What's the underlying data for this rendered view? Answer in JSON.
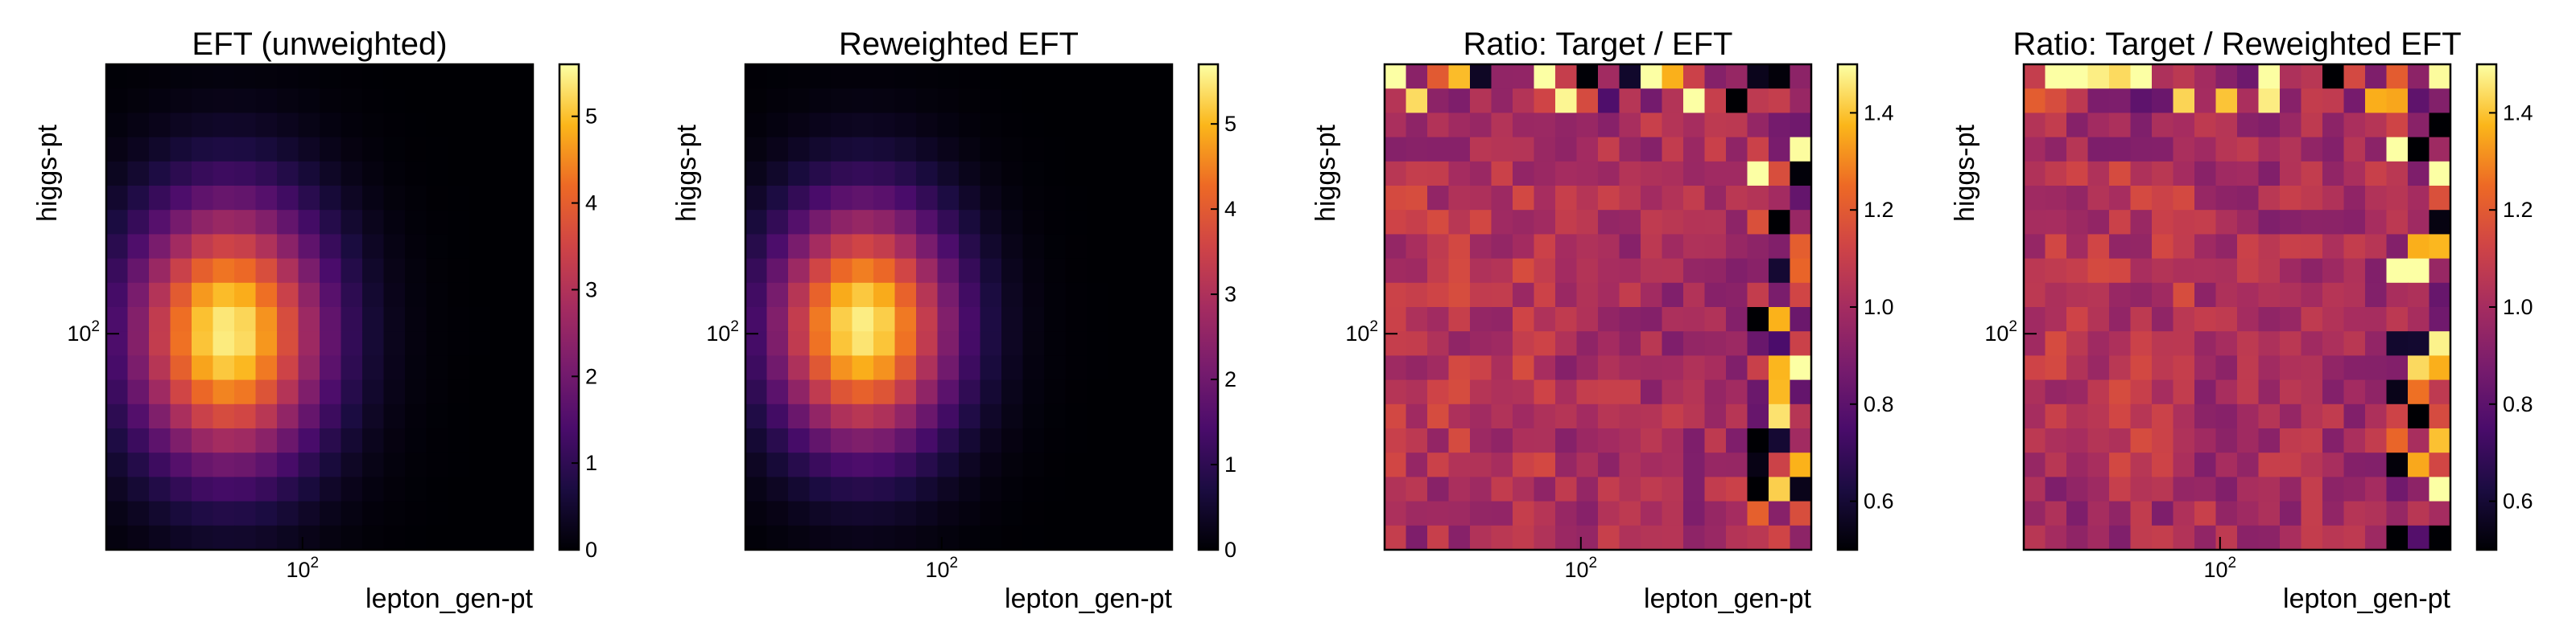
{
  "chart_data": [
    {
      "type": "heatmap",
      "title": "EFT (unweighted)",
      "xlabel": "lepton_gen-pt",
      "ylabel": "higgs-pt",
      "x_scale": "log",
      "y_scale": "log",
      "x_tick_labels": [
        "10^2"
      ],
      "y_tick_labels": [
        "10^2"
      ],
      "colormap": "inferno",
      "colorbar_range": [
        0,
        5.6
      ],
      "colorbar_ticks": [
        "0",
        "1",
        "2",
        "3",
        "4",
        "5"
      ],
      "grid_bins": [
        20,
        20
      ],
      "z_description": "smooth distribution peaking near 5.5 at lower-left-center, falling to 0 toward the right and bottom edges"
    },
    {
      "type": "heatmap",
      "title": "Reweighted EFT",
      "xlabel": "lepton_gen-pt",
      "ylabel": "higgs-pt",
      "x_scale": "log",
      "y_scale": "log",
      "x_tick_labels": [
        "10^2"
      ],
      "y_tick_labels": [
        "10^2"
      ],
      "colormap": "inferno",
      "colorbar_range": [
        0,
        5.7
      ],
      "colorbar_ticks": [
        "0",
        "1",
        "2",
        "3",
        "4",
        "5"
      ],
      "grid_bins": [
        20,
        20
      ],
      "z_description": "smooth distribution peaking near 5.6 at lower-left-center, slightly more compact than unweighted"
    },
    {
      "type": "heatmap",
      "title": "Ratio: Target / EFT",
      "xlabel": "lepton_gen-pt",
      "ylabel": "higgs-pt",
      "x_scale": "log",
      "y_scale": "log",
      "x_tick_labels": [
        "10^2"
      ],
      "y_tick_labels": [
        "10^2"
      ],
      "colormap": "inferno",
      "colorbar_range": [
        0.5,
        1.5
      ],
      "colorbar_ticks": [
        "0.6",
        "0.8",
        "1.0",
        "1.2",
        "1.4"
      ],
      "grid_bins": [
        20,
        20
      ],
      "z_description": "ratio around 1.0-1.1 across most bins, noisy with outliers (very low and very high) along the top row and right edge"
    },
    {
      "type": "heatmap",
      "title": "Ratio: Target / Reweighted EFT",
      "xlabel": "lepton_gen-pt",
      "ylabel": "higgs-pt",
      "x_scale": "log",
      "y_scale": "log",
      "x_tick_labels": [
        "10^2"
      ],
      "y_tick_labels": [
        "10^2"
      ],
      "colormap": "inferno",
      "colorbar_range": [
        0.5,
        1.5
      ],
      "colorbar_ticks": [
        "0.6",
        "0.8",
        "1.0",
        "1.2",
        "1.4"
      ],
      "grid_bins": [
        20,
        20
      ],
      "z_description": "ratio close to 1.0 across most bins, fluctuations concentrated along the top row and right edge"
    }
  ]
}
